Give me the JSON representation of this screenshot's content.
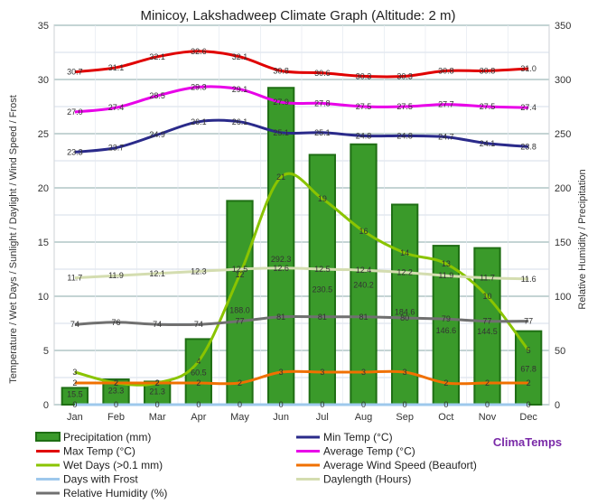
{
  "chart_data": {
    "type": "bar",
    "title": "Minicoy, Lakshadweep Climate Graph (Altitude: 2 m)",
    "ylabel_left": "Temperature / Wet Days / Sunlight / Daylight / Wind Speed / Frost",
    "ylabel_right": "Relative Humidity / Precipitation",
    "ylim_left": [
      0,
      35
    ],
    "ylim_right": [
      0,
      350
    ],
    "yticks_left": [
      0,
      5,
      10,
      15,
      20,
      25,
      30,
      35
    ],
    "yticks_right": [
      0,
      50,
      100,
      150,
      200,
      250,
      300,
      350
    ],
    "categories": [
      "Jan",
      "Feb",
      "Mar",
      "Apr",
      "May",
      "Jun",
      "Jul",
      "Aug",
      "Sep",
      "Oct",
      "Nov",
      "Dec"
    ],
    "brand": "ClimaTemps",
    "series": [
      {
        "name": "Precipitation (mm)",
        "type": "bar",
        "axis": "right",
        "color": "#3a9a2a",
        "values": [
          15.5,
          23.3,
          21.3,
          60.5,
          188.0,
          292.3,
          230.5,
          240.2,
          184.6,
          146.6,
          144.5,
          67.8
        ]
      },
      {
        "name": "Min Temp (°C)",
        "type": "line",
        "axis": "left",
        "color": "#2a2a8a",
        "values": [
          23.3,
          23.7,
          24.9,
          26.1,
          26.1,
          25.1,
          25.1,
          24.8,
          24.8,
          24.7,
          24.1,
          23.8
        ]
      },
      {
        "name": "Max Temp (°C)",
        "type": "line",
        "axis": "left",
        "color": "#e00000",
        "values": [
          30.7,
          31.1,
          32.1,
          32.6,
          32.1,
          30.8,
          30.6,
          30.3,
          30.3,
          30.8,
          30.8,
          31.0
        ]
      },
      {
        "name": "Average Temp (°C)",
        "type": "line",
        "axis": "left",
        "color": "#e800e8",
        "values": [
          27.0,
          27.4,
          28.5,
          29.3,
          29.1,
          27.9,
          27.8,
          27.5,
          27.5,
          27.7,
          27.5,
          27.4
        ]
      },
      {
        "name": "Wet Days (>0.1 mm)",
        "type": "line",
        "axis": "left",
        "color": "#8ac400",
        "values": [
          3,
          2,
          2,
          4,
          12,
          21,
          19,
          16,
          14,
          13,
          10,
          5
        ]
      },
      {
        "name": "Average Wind Speed (Beaufort)",
        "type": "line",
        "axis": "left",
        "color": "#f07000",
        "values": [
          2,
          2,
          2,
          2,
          2,
          3,
          3,
          3,
          3,
          2,
          2,
          2
        ]
      },
      {
        "name": "Days with Frost",
        "type": "line",
        "axis": "left",
        "color": "#9ec8ec",
        "values": [
          0,
          0,
          0,
          0,
          0,
          0,
          0,
          0,
          0,
          0,
          0,
          0
        ]
      },
      {
        "name": "Daylength (Hours)",
        "type": "line",
        "axis": "left",
        "color": "#d4ddb0",
        "values": [
          11.7,
          11.9,
          12.1,
          12.3,
          12.5,
          12.6,
          12.5,
          12.4,
          12.2,
          11.9,
          11.7,
          11.6
        ]
      },
      {
        "name": "Relative Humidity (%)",
        "type": "line",
        "axis": "right",
        "color": "#707070",
        "values": [
          74,
          76,
          74,
          74,
          77,
          81,
          81,
          81,
          80,
          79,
          77,
          77
        ]
      }
    ],
    "labels": {
      "Precipitation (mm)": [
        "15.5",
        "23.3",
        "21.3",
        "60.5",
        "188.0",
        "292.3",
        "230.5",
        "240.2",
        "184.6",
        "146.6",
        "144.5",
        "67.8"
      ],
      "Min Temp (°C)": [
        "23.3",
        "23.7",
        "24.9",
        "26.1",
        "26.1",
        "25.1",
        "25.1",
        "24.8",
        "24.8",
        "24.7",
        "24.1",
        "23.8"
      ],
      "Max Temp (°C)": [
        "30.7",
        "31.1",
        "32.1",
        "32.6",
        "32.1",
        "30.8",
        "30.6",
        "30.3",
        "30.3",
        "30.8",
        "30.8",
        "31.0"
      ],
      "Average Temp (°C)": [
        "27.0",
        "27.4",
        "28.5",
        "29.3",
        "29.1",
        "27.9",
        "27.8",
        "27.5",
        "27.5",
        "27.7",
        "27.5",
        "27.4"
      ],
      "Wet Days (>0.1 mm)": [
        "3",
        "2",
        "2",
        "4",
        "12",
        "21",
        "19",
        "16",
        "14",
        "13",
        "10",
        "5"
      ],
      "Average Wind Speed (Beaufort)": [
        "2",
        "2",
        "2",
        "2",
        "2",
        "3",
        "3",
        "3",
        "3",
        "2",
        "2",
        "2"
      ],
      "Days with Frost": [
        "0",
        "0",
        "0",
        "0",
        "0",
        "0",
        "0",
        "0",
        "0",
        "0",
        "0",
        "0"
      ],
      "Daylength (Hours)": [
        "11.7",
        "11.9",
        "12.1",
        "12.3",
        "12.5",
        "12.6",
        "12.5",
        "12.4",
        "12.2",
        "11.9",
        "11.7",
        "11.6"
      ],
      "Relative Humidity (%)": [
        "74",
        "76",
        "74",
        "74",
        "77",
        "81",
        "81",
        "81",
        "80",
        "79",
        "77",
        "77"
      ]
    },
    "legend_order": [
      "Precipitation (mm)",
      "Min Temp (°C)",
      "Max Temp (°C)",
      "Average Temp (°C)",
      "Wet Days (>0.1 mm)",
      "Average Wind Speed (Beaufort)",
      "Days with Frost",
      "Daylength (Hours)",
      "Relative Humidity (%)"
    ],
    "legend_placement": "bottom",
    "grid": true
  }
}
